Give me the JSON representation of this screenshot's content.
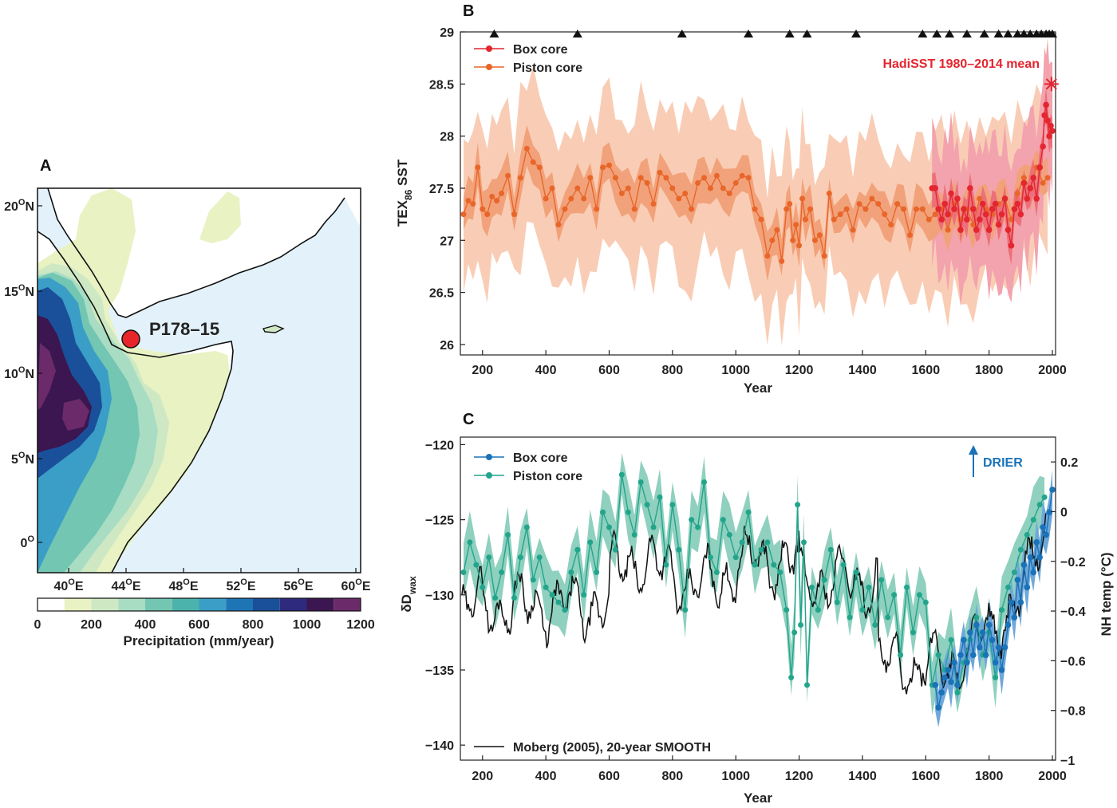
{
  "map": {
    "panel_label": "A",
    "site_label": "P178–15",
    "lon_labels": [
      "40",
      "44",
      "48",
      "52",
      "56",
      "60"
    ],
    "lat_labels": [
      "20",
      "15",
      "10",
      "5",
      "0"
    ],
    "lon_lat_degree": "O",
    "lon_suffix": "E",
    "lat_suffix": "N",
    "lat_zero_label": "0",
    "colorbar_label": "Precipitation (mm/year)",
    "colorbar_ticks": [
      "0",
      "200",
      "400",
      "600",
      "800",
      "1000",
      "1200"
    ],
    "colors": {
      "sea": "#e3f2fa",
      "dry": "#ffffff",
      "c100": "#e8f2c3",
      "c200": "#cfe8c4",
      "c300": "#a8dcc3",
      "c400": "#72c6b2",
      "c500": "#4cb3ac",
      "c600": "#3a9ec6",
      "c700": "#1e75b6",
      "c800": "#1a4f9a",
      "c900": "#2e2a7d",
      "c1000": "#3b1650",
      "c1100": "#6b2a6a",
      "site": "#e8262a"
    }
  },
  "chart_data": [
    {
      "type": "line",
      "panel_label": "B",
      "xlabel": "Year",
      "ylabel_main": "TEX",
      "ylabel_sub": "86",
      "ylabel_rest": " SST",
      "xlim": [
        130,
        2010
      ],
      "ylim": [
        25.9,
        29.0
      ],
      "x_ticks": [
        "200",
        "400",
        "600",
        "800",
        "1000",
        "1200",
        "1400",
        "1600",
        "1800",
        "2000"
      ],
      "y_ticks": [
        "26",
        "26.5",
        "27",
        "27.5",
        "28",
        "28.5",
        "29"
      ],
      "legend": [
        "Box core",
        "Piston core"
      ],
      "annotation": "HadiSST 1980–2014 mean",
      "hadisst": {
        "x": 1997,
        "y": 28.5
      },
      "age_control_years": [
        237,
        500,
        830,
        1040,
        1170,
        1225,
        1380,
        1590,
        1635,
        1675,
        1730,
        1785,
        1830,
        1860,
        1890,
        1910,
        1930,
        1950,
        1965,
        1980,
        1990,
        2000
      ],
      "colors": {
        "piston": "#e8662a",
        "piston_band_outer": "#f9cdb5",
        "piston_band_inner": "#f2a27a",
        "box": "#e3262f",
        "box_band": "#f3a3ad"
      },
      "series": [
        {
          "name": "Piston core",
          "x": [
            140,
            155,
            170,
            185,
            200,
            215,
            230,
            245,
            260,
            280,
            300,
            320,
            340,
            360,
            380,
            400,
            420,
            440,
            460,
            480,
            500,
            520,
            540,
            560,
            580,
            600,
            620,
            640,
            660,
            680,
            700,
            720,
            740,
            760,
            780,
            800,
            820,
            840,
            860,
            880,
            900,
            920,
            940,
            960,
            980,
            1000,
            1020,
            1040,
            1060,
            1080,
            1100,
            1115,
            1130,
            1145,
            1160,
            1170,
            1180,
            1190,
            1200,
            1210,
            1220,
            1235,
            1250,
            1265,
            1280,
            1295,
            1310,
            1330,
            1350,
            1370,
            1390,
            1410,
            1430,
            1450,
            1470,
            1490,
            1510,
            1530,
            1550,
            1570,
            1590,
            1610,
            1630,
            1650,
            1670,
            1690,
            1710,
            1730,
            1750,
            1770,
            1790,
            1810,
            1830,
            1850,
            1870,
            1890,
            1910,
            1930,
            1950,
            1970,
            1985
          ],
          "y": [
            27.25,
            27.38,
            27.35,
            27.7,
            27.3,
            27.25,
            27.42,
            27.38,
            27.45,
            27.62,
            27.25,
            27.6,
            27.88,
            27.75,
            27.7,
            27.4,
            27.5,
            27.15,
            27.3,
            27.4,
            27.5,
            27.4,
            27.6,
            27.3,
            27.7,
            27.72,
            27.6,
            27.45,
            27.5,
            27.3,
            27.6,
            27.55,
            27.35,
            27.65,
            27.6,
            27.5,
            27.4,
            27.45,
            27.3,
            27.55,
            27.6,
            27.5,
            27.62,
            27.5,
            27.45,
            27.55,
            27.62,
            27.6,
            27.3,
            27.2,
            26.85,
            27.0,
            27.1,
            26.8,
            27.3,
            27.35,
            27.0,
            27.15,
            26.95,
            27.4,
            27.2,
            27.3,
            27.0,
            27.05,
            26.85,
            27.45,
            27.2,
            27.25,
            27.3,
            27.1,
            27.35,
            27.3,
            27.4,
            27.35,
            27.25,
            27.15,
            27.35,
            27.3,
            27.05,
            27.3,
            27.3,
            27.2,
            27.25,
            27.3,
            27.1,
            27.35,
            27.2,
            27.3,
            27.15,
            27.4,
            27.3,
            27.25,
            27.35,
            27.4,
            27.2,
            27.45,
            27.6,
            27.5,
            27.7,
            27.55,
            27.6
          ]
        },
        {
          "name": "Box core",
          "x": [
            1620,
            1630,
            1640,
            1650,
            1660,
            1670,
            1680,
            1690,
            1700,
            1710,
            1720,
            1730,
            1740,
            1750,
            1760,
            1770,
            1780,
            1790,
            1800,
            1810,
            1820,
            1830,
            1840,
            1850,
            1860,
            1870,
            1880,
            1890,
            1900,
            1910,
            1920,
            1930,
            1940,
            1950,
            1960,
            1970,
            1975,
            1980,
            1985,
            1990,
            1995,
            2000
          ],
          "y": [
            27.5,
            27.5,
            27.3,
            27.2,
            27.35,
            27.25,
            27.45,
            27.3,
            27.4,
            27.1,
            27.3,
            27.2,
            27.5,
            27.3,
            27.1,
            27.2,
            27.35,
            27.25,
            27.1,
            27.3,
            27.35,
            27.15,
            27.25,
            27.4,
            27.1,
            26.95,
            27.3,
            27.35,
            27.25,
            27.55,
            27.4,
            27.5,
            27.6,
            27.4,
            27.7,
            27.9,
            28.2,
            28.3,
            28.15,
            28.0,
            28.1,
            28.05
          ]
        }
      ]
    },
    {
      "type": "line",
      "panel_label": "C",
      "xlabel": "Year",
      "ylabel_main": "δD",
      "ylabel_sub": "wax",
      "ylabel_right": "NH temp (°C)",
      "xlim": [
        130,
        2010
      ],
      "ylim": [
        -141,
        -119.5
      ],
      "y2lim": [
        -1.0,
        0.3
      ],
      "x_ticks": [
        "200",
        "400",
        "600",
        "800",
        "1000",
        "1200",
        "1400",
        "1600",
        "1800",
        "2000"
      ],
      "y_ticks": [
        "−140",
        "−135",
        "−130",
        "−125",
        "−120"
      ],
      "y2_ticks": [
        "−1",
        "−0.8",
        "−0.6",
        "−0.4",
        "−0.2",
        "0",
        "0.2"
      ],
      "legend": [
        "Box core",
        "Piston core"
      ],
      "legend_moberg": "Moberg (2005), 20-year SMOOTH",
      "annotation": "DRIER",
      "colors": {
        "piston": "#23a58c",
        "piston_band": "#8fd0bf",
        "box": "#1a72b8",
        "box_band": "#6ea8da",
        "moberg": "#111111",
        "drier": "#1a72b8"
      },
      "series": [
        {
          "name": "Piston core",
          "x": [
            140,
            160,
            180,
            200,
            220,
            240,
            260,
            280,
            300,
            320,
            340,
            360,
            380,
            400,
            420,
            440,
            460,
            480,
            500,
            520,
            540,
            560,
            580,
            600,
            620,
            640,
            660,
            680,
            700,
            720,
            740,
            760,
            780,
            800,
            820,
            840,
            860,
            880,
            900,
            920,
            940,
            960,
            980,
            1000,
            1020,
            1040,
            1060,
            1080,
            1100,
            1120,
            1140,
            1160,
            1175,
            1185,
            1195,
            1205,
            1215,
            1225,
            1240,
            1260,
            1280,
            1300,
            1320,
            1340,
            1360,
            1380,
            1400,
            1420,
            1440,
            1460,
            1480,
            1500,
            1520,
            1540,
            1560,
            1580,
            1600,
            1620,
            1640,
            1660,
            1680,
            1700,
            1720,
            1740,
            1760,
            1780,
            1800,
            1820,
            1840,
            1860,
            1880,
            1900,
            1920,
            1940,
            1960,
            1975
          ],
          "y": [
            -128.5,
            -126.5,
            -128.0,
            -129.5,
            -127.5,
            -130.2,
            -128.5,
            -126.0,
            -130.2,
            -127.5,
            -125.5,
            -129.0,
            -127.5,
            -129.5,
            -130.0,
            -130.5,
            -131.0,
            -128.5,
            -127.0,
            -130.0,
            -126.5,
            -128.5,
            -124.5,
            -125.5,
            -127.0,
            -122.0,
            -124.5,
            -126.0,
            -122.5,
            -124.0,
            -125.5,
            -123.5,
            -128.0,
            -124.0,
            -127.0,
            -131.0,
            -125.0,
            -125.5,
            -122.5,
            -127.5,
            -128.5,
            -125.0,
            -126.0,
            -127.5,
            -126.5,
            -124.5,
            -128.0,
            -127.0,
            -126.5,
            -128.0,
            -128.5,
            -131.0,
            -135.5,
            -132.5,
            -124.0,
            -132.0,
            -126.5,
            -136.0,
            -129.5,
            -131.0,
            -129.0,
            -127.0,
            -130.5,
            -128.0,
            -131.5,
            -128.5,
            -131.0,
            -129.5,
            -132.0,
            -129.0,
            -131.5,
            -130.0,
            -134.0,
            -129.5,
            -132.5,
            -130.0,
            -130.5,
            -136.0,
            -134.0,
            -135.0,
            -133.0,
            -136.5,
            -134.5,
            -133.0,
            -131.5,
            -134.0,
            -132.5,
            -135.5,
            -131.0,
            -129.5,
            -128.5,
            -127.0,
            -126.0,
            -125.0,
            -124.0,
            -123.5
          ]
        },
        {
          "name": "Box core",
          "x": [
            1630,
            1640,
            1650,
            1660,
            1670,
            1680,
            1690,
            1700,
            1710,
            1720,
            1730,
            1740,
            1750,
            1760,
            1770,
            1780,
            1790,
            1800,
            1810,
            1820,
            1830,
            1840,
            1850,
            1860,
            1870,
            1880,
            1890,
            1900,
            1910,
            1920,
            1930,
            1940,
            1950,
            1960,
            1970,
            1980,
            1990,
            2000
          ],
          "y": [
            -136.0,
            -137.5,
            -136.5,
            -135.5,
            -135.0,
            -135.8,
            -134.5,
            -136.0,
            -134.0,
            -133.0,
            -134.5,
            -132.5,
            -134.0,
            -132.0,
            -133.5,
            -132.5,
            -134.0,
            -132.0,
            -133.0,
            -134.5,
            -133.5,
            -135.0,
            -133.5,
            -132.0,
            -130.5,
            -131.5,
            -129.0,
            -130.5,
            -128.0,
            -129.5,
            -127.5,
            -128.5,
            -126.5,
            -127.5,
            -125.5,
            -126.0,
            -124.5,
            -123.0
          ]
        }
      ]
    }
  ]
}
